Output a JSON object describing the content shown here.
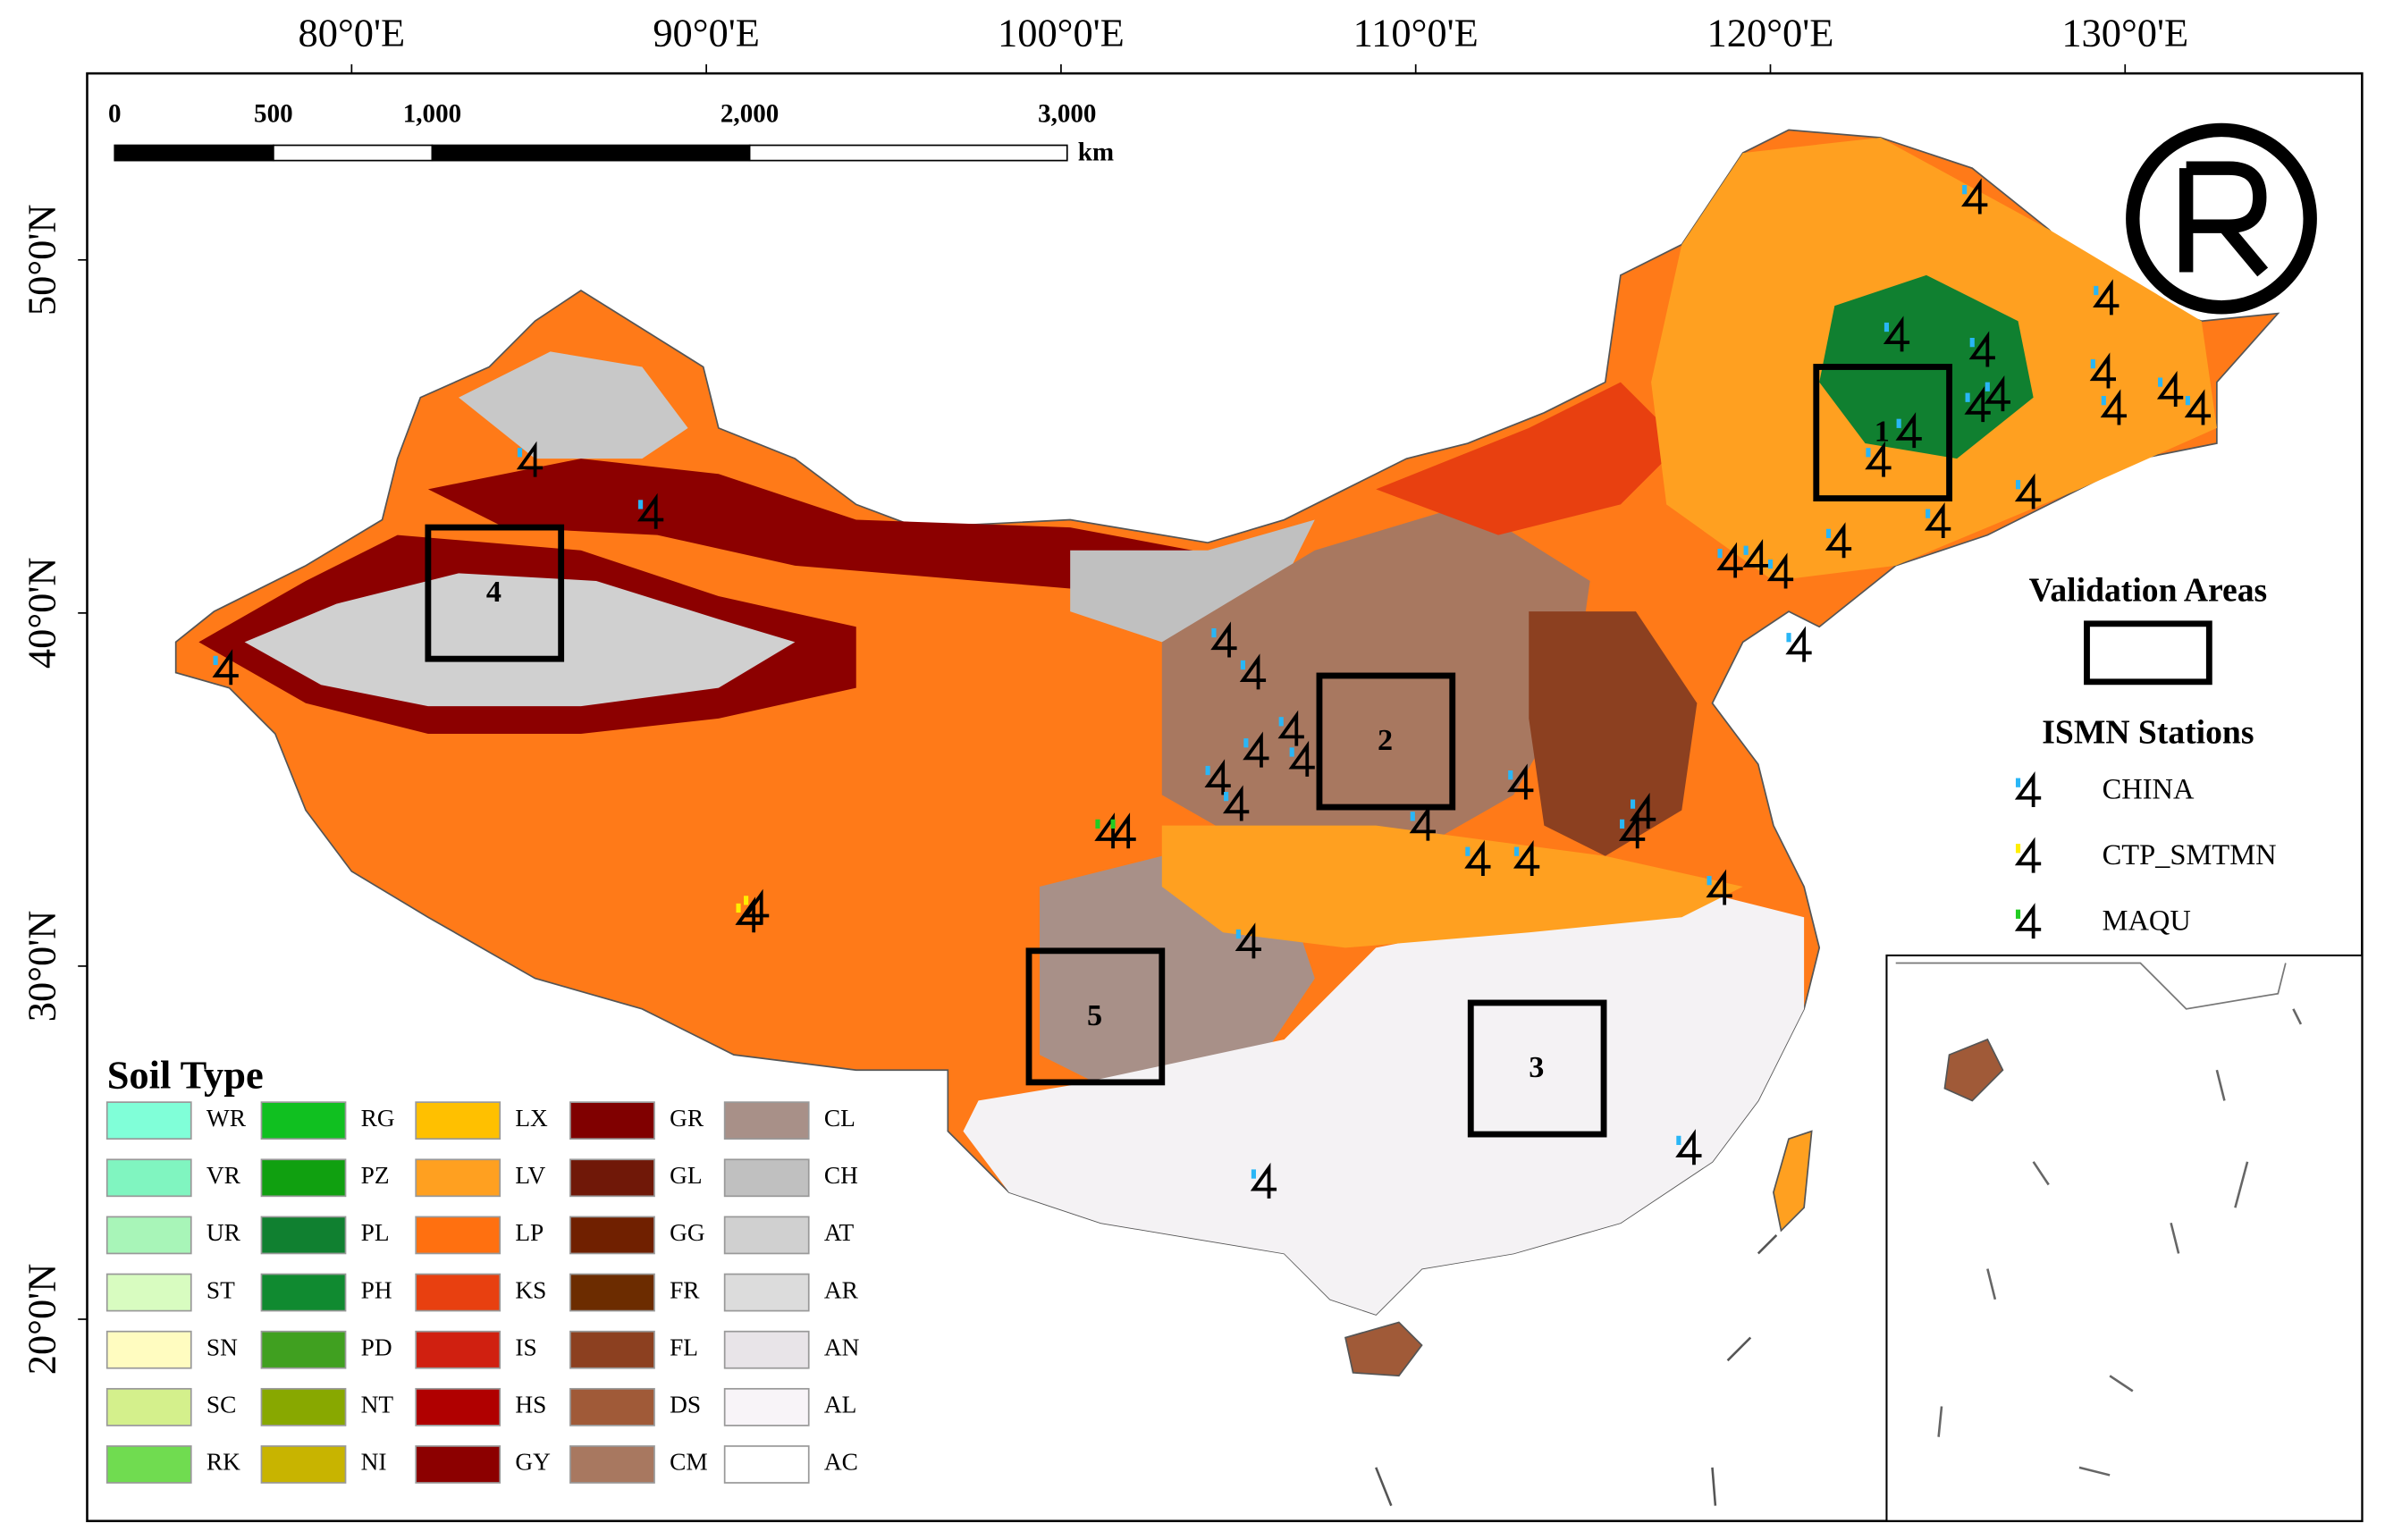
{
  "map": {
    "lon_ticks": [
      {
        "value": 80,
        "label": "80°0'E"
      },
      {
        "value": 90,
        "label": "90°0'E"
      },
      {
        "value": 100,
        "label": "100°0'E"
      },
      {
        "value": 110,
        "label": "110°0'E"
      },
      {
        "value": 120,
        "label": "120°0'E"
      },
      {
        "value": 130,
        "label": "130°0'E"
      }
    ],
    "lat_ticks": [
      {
        "value": 50,
        "label": "50°0'N"
      },
      {
        "value": 40,
        "label": "40°0'N"
      },
      {
        "value": 30,
        "label": "30°0'N"
      },
      {
        "value": 20,
        "label": "20°0'N"
      }
    ],
    "scale_bar": {
      "ticks": [
        0,
        500,
        {
          "value": 1000,
          "label": "1,000"
        },
        {
          "value": 2000,
          "label": "2,000"
        },
        {
          "value": 3000,
          "label": "3,000"
        }
      ],
      "unit": "km"
    },
    "legend": {
      "title": "Soil Type",
      "items": [
        {
          "code": "WR",
          "color": "#80ffd8"
        },
        {
          "code": "VR",
          "color": "#80f5c0"
        },
        {
          "code": "UR",
          "color": "#a8f5b8"
        },
        {
          "code": "ST",
          "color": "#d8fcc0"
        },
        {
          "code": "SN",
          "color": "#fffcc0"
        },
        {
          "code": "SC",
          "color": "#d4f08c"
        },
        {
          "code": "RK",
          "color": "#70dc50"
        },
        {
          "code": "RG",
          "color": "#10c020"
        },
        {
          "code": "PZ",
          "color": "#10a010"
        },
        {
          "code": "PL",
          "color": "#108030"
        },
        {
          "code": "PH",
          "color": "#108a30"
        },
        {
          "code": "PD",
          "color": "#40a020"
        },
        {
          "code": "NT",
          "color": "#88a800"
        },
        {
          "code": "NI",
          "color": "#c8b400"
        },
        {
          "code": "LX",
          "color": "#ffc000"
        },
        {
          "code": "LV",
          "color": "#ffa020"
        },
        {
          "code": "LP",
          "color": "#ff7010"
        },
        {
          "code": "KS",
          "color": "#e84010"
        },
        {
          "code": "IS",
          "color": "#d02010"
        },
        {
          "code": "HS",
          "color": "#b00000"
        },
        {
          "code": "GY",
          "color": "#8c0000"
        },
        {
          "code": "GR",
          "color": "#800000"
        },
        {
          "code": "GL",
          "color": "#701808"
        },
        {
          "code": "GG",
          "color": "#702000"
        },
        {
          "code": "FR",
          "color": "#6c2c00"
        },
        {
          "code": "FL",
          "color": "#8c4020"
        },
        {
          "code": "DS",
          "color": "#a05a38"
        },
        {
          "code": "CM",
          "color": "#a87860"
        },
        {
          "code": "CL",
          "color": "#a89088"
        },
        {
          "code": "CH",
          "color": "#c0c0c0"
        },
        {
          "code": "AT",
          "color": "#d0d0d0"
        },
        {
          "code": "AR",
          "color": "#dcdcdc"
        },
        {
          "code": "AN",
          "color": "#e8e4e8"
        },
        {
          "code": "AL",
          "color": "#f8f4f8"
        },
        {
          "code": "AC",
          "color": "#ffffff"
        }
      ]
    },
    "validation_areas": {
      "title": "Validation Areas",
      "labels": [
        "1",
        "2",
        "3",
        "4",
        "5"
      ]
    },
    "stations": {
      "title": "ISMN Stations",
      "networks": [
        {
          "name": "CHINA",
          "color": "#29b6f6"
        },
        {
          "name": "CTP_SMTMN",
          "color": "#ffee00"
        },
        {
          "name": "MAQU",
          "color": "#22cc22"
        }
      ]
    }
  }
}
